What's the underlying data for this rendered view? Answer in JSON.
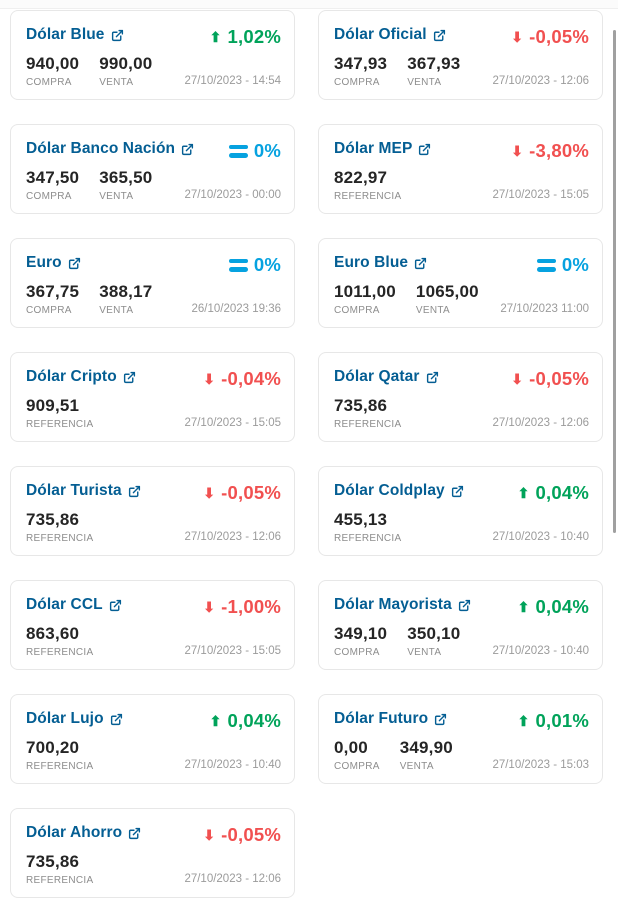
{
  "colors": {
    "up": "#00A35A",
    "down": "#F15050",
    "neutral": "#06A2E0",
    "link": "#045E93"
  },
  "icons": {
    "external_link": "external-link-icon",
    "up_glyph": "⬆",
    "down_glyph": "⬇"
  },
  "cards": [
    {
      "title": "Dólar Blue",
      "direction": "up",
      "change": "1,02%",
      "values": [
        {
          "amount": "940,00",
          "label": "COMPRA"
        },
        {
          "amount": "990,00",
          "label": "VENTA"
        }
      ],
      "timestamp": "27/10/2023 - 14:54"
    },
    {
      "title": "Dólar Oficial",
      "direction": "down",
      "change": "-0,05%",
      "values": [
        {
          "amount": "347,93",
          "label": "COMPRA"
        },
        {
          "amount": "367,93",
          "label": "VENTA"
        }
      ],
      "timestamp": "27/10/2023 - 12:06"
    },
    {
      "title": "Dólar Banco Nación",
      "direction": "equal",
      "change": "0%",
      "values": [
        {
          "amount": "347,50",
          "label": "COMPRA"
        },
        {
          "amount": "365,50",
          "label": "VENTA"
        }
      ],
      "timestamp": "27/10/2023 - 00:00"
    },
    {
      "title": "Dólar MEP",
      "direction": "down",
      "change": "-3,80%",
      "values": [
        {
          "amount": "822,97",
          "label": "REFERENCIA"
        }
      ],
      "timestamp": "27/10/2023 - 15:05"
    },
    {
      "title": "Euro",
      "direction": "equal",
      "change": "0%",
      "values": [
        {
          "amount": "367,75",
          "label": "COMPRA"
        },
        {
          "amount": "388,17",
          "label": "VENTA"
        }
      ],
      "timestamp": "26/10/2023 19:36"
    },
    {
      "title": "Euro Blue",
      "direction": "equal",
      "change": "0%",
      "values": [
        {
          "amount": "1011,00",
          "label": "COMPRA"
        },
        {
          "amount": "1065,00",
          "label": "VENTA"
        }
      ],
      "timestamp": "27/10/2023 11:00"
    },
    {
      "title": "Dólar Cripto",
      "direction": "down",
      "change": "-0,04%",
      "values": [
        {
          "amount": "909,51",
          "label": "REFERENCIA"
        }
      ],
      "timestamp": "27/10/2023 - 15:05"
    },
    {
      "title": "Dólar Qatar",
      "direction": "down",
      "change": "-0,05%",
      "values": [
        {
          "amount": "735,86",
          "label": "REFERENCIA"
        }
      ],
      "timestamp": "27/10/2023 - 12:06"
    },
    {
      "title": "Dólar Turista",
      "direction": "down",
      "change": "-0,05%",
      "values": [
        {
          "amount": "735,86",
          "label": "REFERENCIA"
        }
      ],
      "timestamp": "27/10/2023 - 12:06"
    },
    {
      "title": "Dólar Coldplay",
      "direction": "up",
      "change": "0,04%",
      "values": [
        {
          "amount": "455,13",
          "label": "REFERENCIA"
        }
      ],
      "timestamp": "27/10/2023 - 10:40"
    },
    {
      "title": "Dólar CCL",
      "direction": "down",
      "change": "-1,00%",
      "values": [
        {
          "amount": "863,60",
          "label": "REFERENCIA"
        }
      ],
      "timestamp": "27/10/2023 - 15:05"
    },
    {
      "title": "Dólar Mayorista",
      "direction": "up",
      "change": "0,04%",
      "values": [
        {
          "amount": "349,10",
          "label": "COMPRA"
        },
        {
          "amount": "350,10",
          "label": "VENTA"
        }
      ],
      "timestamp": "27/10/2023 - 10:40"
    },
    {
      "title": "Dólar Lujo",
      "direction": "up",
      "change": "0,04%",
      "values": [
        {
          "amount": "700,20",
          "label": "REFERENCIA"
        }
      ],
      "timestamp": "27/10/2023 - 10:40"
    },
    {
      "title": "Dólar Futuro",
      "direction": "up",
      "change": "0,01%",
      "values": [
        {
          "amount": "0,00",
          "label": "COMPRA"
        },
        {
          "amount": "349,90",
          "label": "VENTA"
        }
      ],
      "timestamp": "27/10/2023 - 15:03"
    },
    {
      "title": "Dólar Ahorro",
      "direction": "down",
      "change": "-0,05%",
      "values": [
        {
          "amount": "735,86",
          "label": "REFERENCIA"
        }
      ],
      "timestamp": "27/10/2023 - 12:06"
    }
  ]
}
